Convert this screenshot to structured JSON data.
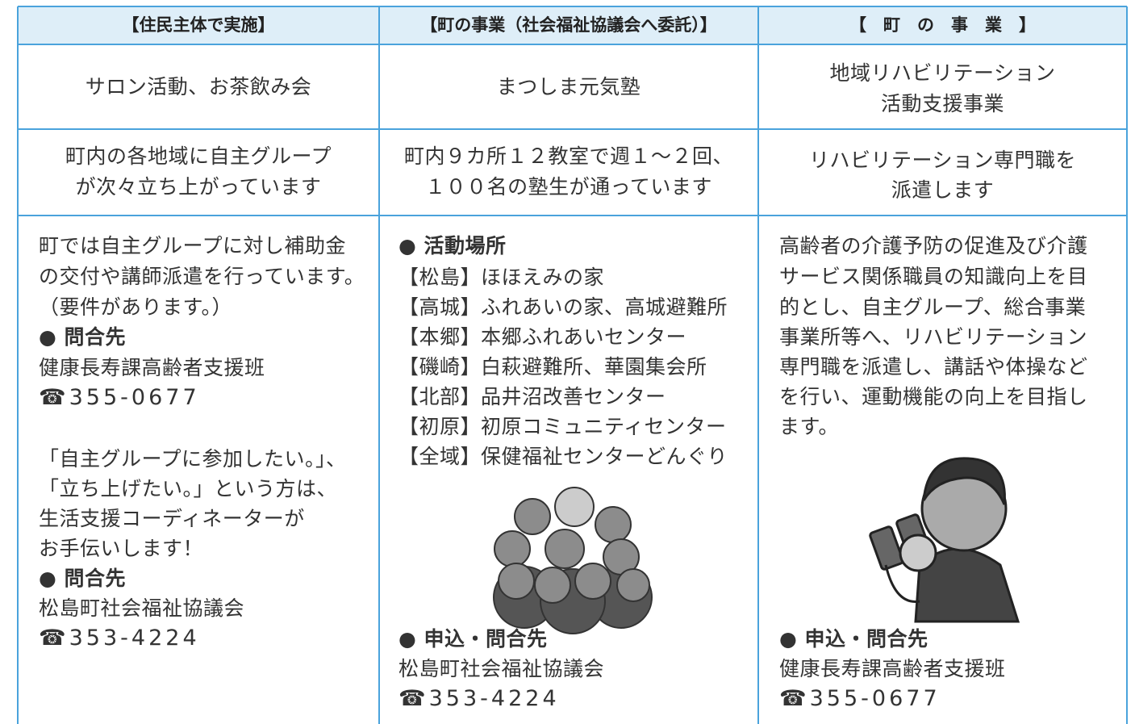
{
  "table": {
    "header": [
      "【住民主体で実施】",
      "【町の事業（社会福祉協議会へ委託）】",
      "【　町　の　事　業　】"
    ],
    "rows": [
      [
        [
          "サロン活動、お茶飲み会"
        ],
        [
          "まつしま元気塾"
        ],
        [
          "地域リハビリテーション",
          "活動支援事業"
        ]
      ],
      [
        [
          "町内の各地域に自主グループ",
          "が次々立ち上がっています"
        ],
        [
          "町内９カ所１２教室で週１～２回、",
          "１００名の塾生が通っています"
        ],
        [
          "リハビリテーション専門職を",
          "派遣します"
        ]
      ],
      [
        [
          "町では自主グループに対し補助金",
          "の交付や講師派遣を行っています。",
          "（要件があります。）",
          "● 問合先",
          "健康長寿課高齢者支援班",
          "☎355-0677",
          "「自主グループに参加したい。」、",
          "「立ち上げたい。」という方は、",
          "生活支援コーディネーターが",
          "お手伝いします！",
          "● 問合先",
          "松島町社会福祉協議会",
          "☎353-4224"
        ],
        [
          "● 活動場所",
          "【松島】ほほえみの家",
          "【高城】ふれあいの家、高城避難所",
          "【本郷】本郷ふれあいセンター",
          "【磯崎】白萩避難所、華園集会所",
          "【北部】品井沼改善センター",
          "【初原】初原コミュニティセンター",
          "【全域】保健福祉センターどんぐり",
          "● 申込・問合先",
          "松島町社会福祉協議会",
          "☎353-4224"
        ],
        [
          "高齢者の介護予防の促進及び介護",
          "サービス関係職員の知識向上を目",
          "的とし、自主グループ、総合事業",
          "事業所等へ、リハビリテーション",
          "専門職を派遣し、講話や体操など",
          "を行い、運動機能の向上を目指し",
          "ます。",
          "● 申込・問合先",
          "健康長寿課高齢者支援班",
          "☎355-0677"
        ]
      ]
    ]
  }
}
